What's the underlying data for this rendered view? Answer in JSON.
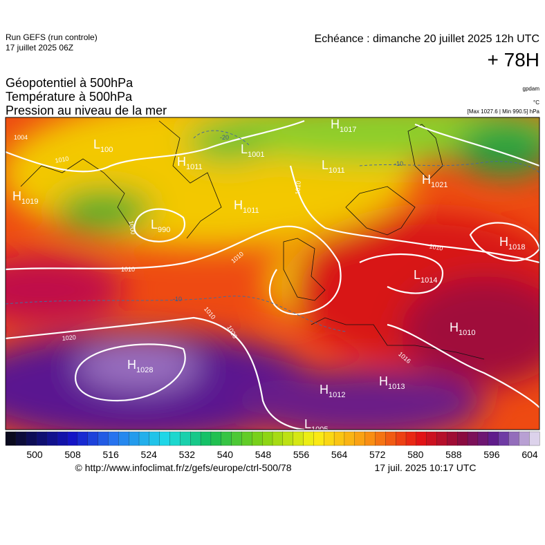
{
  "header": {
    "run": "Run GEFS (run controle)",
    "run_date": "17 juillet 2025 06Z",
    "valid": "Echéance : dimanche 20 juillet 2025 12h UTC",
    "lead": "+ 78H"
  },
  "titles": [
    "Géopotentiel à 500hPa",
    "Température à 500hPa",
    "Pression au niveau de la mer"
  ],
  "units": [
    "gpdam",
    "°C",
    "[Max 1027.6 | Min 990.5] hPa"
  ],
  "centers": [
    {
      "kind": "H",
      "value": "1017"
    },
    {
      "kind": "L",
      "value": "1011"
    },
    {
      "kind": "H",
      "value": "1021"
    },
    {
      "kind": "L",
      "value": "1001"
    },
    {
      "kind": "H",
      "value": "1011"
    },
    {
      "kind": "L",
      "value": "100"
    },
    {
      "kind": "H",
      "value": "1011"
    },
    {
      "kind": "H",
      "value": "1019"
    },
    {
      "kind": "L",
      "value": "990"
    },
    {
      "kind": "H",
      "value": "1018"
    },
    {
      "kind": "L",
      "value": "1014"
    },
    {
      "kind": "H",
      "value": "1010"
    },
    {
      "kind": "H",
      "value": "1028"
    },
    {
      "kind": "H",
      "value": "1012"
    },
    {
      "kind": "H",
      "value": "1013"
    },
    {
      "kind": "L",
      "value": "1005"
    }
  ],
  "isobar_labels": [
    "1004",
    "1010",
    "1000",
    "1010",
    "1010",
    "1010",
    "1020",
    "1020",
    "1010",
    "1016",
    "1010"
  ],
  "isotherm_labels": [
    "-20",
    "-10",
    "-10"
  ],
  "colorbar": {
    "ticks": [
      "500",
      "508",
      "516",
      "524",
      "532",
      "540",
      "548",
      "556",
      "564",
      "572",
      "580",
      "588",
      "596",
      "604"
    ]
  },
  "footer": {
    "source": "© http://www.infoclimat.fr/z/gefs/europe/ctrl-500/78",
    "generated": "17 juil. 2025 10:17 UTC"
  }
}
